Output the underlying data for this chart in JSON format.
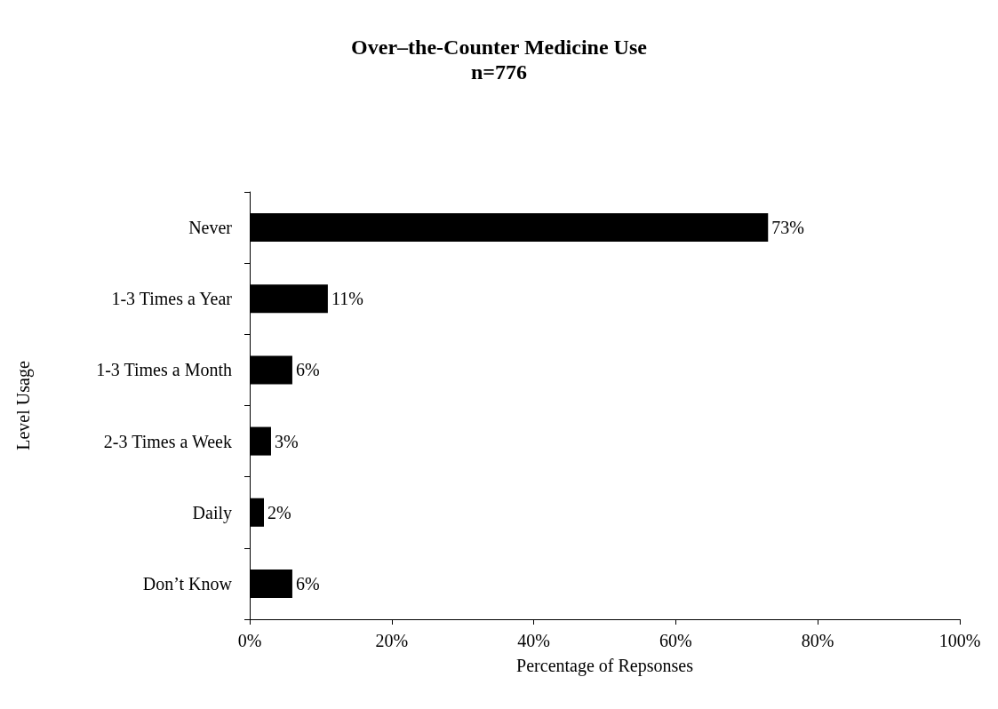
{
  "chart_data": {
    "type": "bar",
    "orientation": "horizontal",
    "title": "Over–the-Counter Medicine Use",
    "subtitle": "n=776",
    "xlabel": "Percentage of Repsonses",
    "ylabel": "Level Usage",
    "categories": [
      "Never",
      "1-3 Times a Year",
      "1-3 Times a Month",
      "2-3 Times a Week",
      "Daily",
      "Don’t Know"
    ],
    "values": [
      73,
      11,
      6,
      3,
      2,
      6
    ],
    "value_labels": [
      "73%",
      "11%",
      "6%",
      "3%",
      "2%",
      "6%"
    ],
    "color": "#000000",
    "xlim": [
      0,
      100
    ],
    "xticks": [
      {
        "value": 0,
        "label": "0%"
      },
      {
        "value": 20,
        "label": "20%"
      },
      {
        "value": 40,
        "label": "40%"
      },
      {
        "value": 60,
        "label": "60%"
      },
      {
        "value": 80,
        "label": "80%"
      },
      {
        "value": 100,
        "label": "100%"
      }
    ],
    "grid": false
  }
}
